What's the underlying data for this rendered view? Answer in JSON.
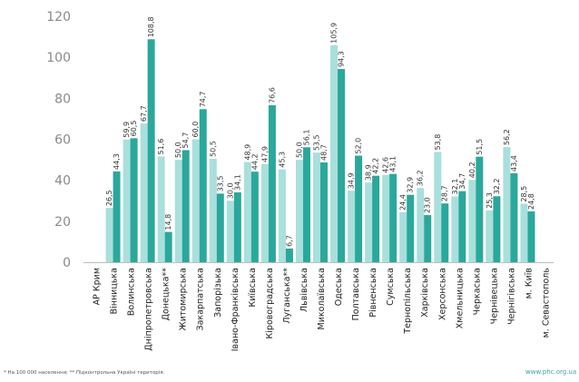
{
  "chart_data": {
    "type": "bar",
    "ylim": [
      0,
      120
    ],
    "yticks": [
      "0",
      "20",
      "40",
      "60",
      "80",
      "100",
      "120"
    ],
    "grid": false,
    "categories": [
      "АР Крим",
      "Вінницька",
      "Волинська",
      "Дніпропетровська",
      "Донецька**",
      "Житомирська",
      "Закарпатська",
      "Запорізька",
      "Івано-Франківська",
      "Київська",
      "Кіровоградська",
      "Луганська**",
      "Львівська",
      "Миколаївська",
      "Одеська",
      "Полтавська",
      "Рівненська",
      "Сумська",
      "Тернопільська",
      "Харківська",
      "Херсонська",
      "Хмельницька",
      "Черкаська",
      "Чернівецька",
      "Чернігівська",
      "м. Київ",
      "м. Севастополь"
    ],
    "series": [
      {
        "values": [
          null,
          26.5,
          59.9,
          67.7,
          51.6,
          50.0,
          60.0,
          50.5,
          30.0,
          48.9,
          47.9,
          45.3,
          50.0,
          53.5,
          105.9,
          34.9,
          38.9,
          42.6,
          24.4,
          36.2,
          53.8,
          32.1,
          40.2,
          25.3,
          56.2,
          28.5,
          null
        ],
        "color": "#a9dfdc"
      },
      {
        "values": [
          null,
          44.3,
          60.5,
          108.8,
          14.8,
          54.7,
          74.7,
          33.5,
          34.1,
          44.2,
          76.6,
          6.7,
          56.1,
          48.7,
          94.3,
          52.0,
          42.2,
          43.1,
          32.9,
          23.0,
          28.7,
          34.7,
          51.5,
          32.2,
          43.4,
          24.8,
          null
        ],
        "color": "#2aa89b"
      }
    ],
    "labels": [
      [
        "",
        "26,5",
        "59,9",
        "67,7",
        "51,6",
        "50,0",
        "60,0",
        "50,5",
        "30,0",
        "48,9",
        "47,9",
        "45,3",
        "50,0",
        "53,5",
        "105,9",
        "34,9",
        "38,9",
        "42,6",
        "24,4",
        "36,2",
        "53,8",
        "32,1",
        "40,2",
        "25,3",
        "56,2",
        "28,5",
        ""
      ],
      [
        "",
        "44,3",
        "60,5",
        "108,8",
        "14,8",
        "54,7",
        "74,7",
        "33,5",
        "34,1",
        "44,2",
        "76,6",
        "6,7",
        "56,1",
        "48,7",
        "94,3",
        "52,0",
        "42,2",
        "43,1",
        "32,9",
        "23,0",
        "28,7",
        "34,7",
        "51,5",
        "32,2",
        "43,4",
        "24,8",
        ""
      ]
    ],
    "footnote": "* На 100 000 населення; ** Підконтрольна Україні територія.",
    "source": "www.phc.org.ua"
  }
}
